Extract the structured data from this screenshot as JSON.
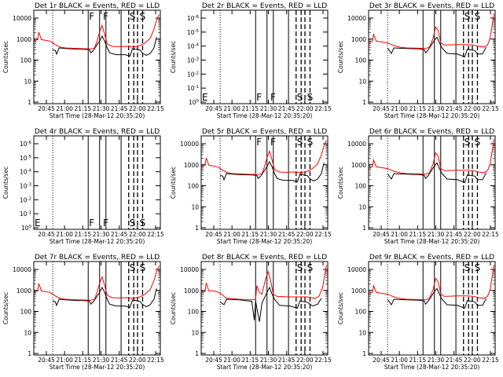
{
  "chart_data": [
    {
      "type": "line",
      "title": "Det 1r BLACK = Events, RED = LLD",
      "xlabel": "Start Time (28-Mar-12 20:35:20)",
      "ylabel": "Counts/sec",
      "scale": "log",
      "yticks": [
        "10000",
        "1000",
        "100",
        "10",
        "1"
      ],
      "ylim": [
        1,
        12000
      ],
      "xlim": [
        0,
        100
      ],
      "xticks": [
        "20:45",
        "21:00",
        "21:15",
        "21:30",
        "21:45",
        "22:00",
        "22:15"
      ],
      "flags": [
        "F",
        "F",
        "S",
        "S"
      ],
      "profile": "A",
      "series": [
        {
          "name": "BLACK",
          "color": "#000000"
        },
        {
          "name": "RED",
          "color": "#ff0000"
        }
      ]
    },
    {
      "type": "line",
      "title": "Det 2r BLACK = Events, RED = LLD",
      "xlabel": "Start Time (28-Mar-12 20:35:20)",
      "ylabel": "Counts/sec",
      "scale": "exp",
      "yticks": [
        "10^-6",
        "10^-5",
        "10^-4",
        "10^-3",
        "10^-2",
        "10^-1",
        "10^0"
      ],
      "xlim": [
        0,
        100
      ],
      "xticks": [
        "20:45",
        "21:00",
        "21:15",
        "21:30",
        "21:45",
        "22:00",
        "22:15"
      ],
      "flags": [
        "E",
        "F",
        "F",
        "S",
        "S"
      ],
      "profile": "none",
      "series": []
    },
    {
      "type": "line",
      "title": "Det 3r BLACK = Events, RED = LLD",
      "xlabel": "Start Time (28-Mar-12 20:35:20)",
      "ylabel": "Counts/sec",
      "scale": "log",
      "yticks": [
        "10000",
        "1000",
        "100",
        "10",
        "1"
      ],
      "ylim": [
        1,
        12000
      ],
      "xlim": [
        0,
        100
      ],
      "xticks": [
        "20:45",
        "21:00",
        "21:15",
        "21:30",
        "21:45",
        "22:00",
        "22:15"
      ],
      "flags": [
        "S",
        "S"
      ],
      "profile": "B",
      "series": [
        {
          "name": "BLACK",
          "color": "#000000"
        },
        {
          "name": "RED",
          "color": "#ff0000"
        }
      ]
    },
    {
      "type": "line",
      "title": "Det 4r BLACK = Events, RED = LLD",
      "xlabel": "Start Time (28-Mar-12 20:35:20)",
      "ylabel": "Counts/sec",
      "scale": "exp",
      "yticks": [
        "10^-6",
        "10^-5",
        "10^-4",
        "10^-3",
        "10^-2",
        "10^-1",
        "10^0"
      ],
      "xlim": [
        0,
        100
      ],
      "xticks": [
        "20:45",
        "21:00",
        "21:15",
        "21:30",
        "21:45",
        "22:00",
        "22:15"
      ],
      "flags": [
        "E",
        "F",
        "F",
        "S",
        "S"
      ],
      "profile": "none",
      "series": []
    },
    {
      "type": "line",
      "title": "Det 5r BLACK = Events, RED = LLD",
      "xlabel": "Start Time (28-Mar-12 20:35:20)",
      "ylabel": "Counts/sec",
      "scale": "log",
      "yticks": [
        "10000",
        "1000",
        "100",
        "10",
        "1"
      ],
      "ylim": [
        1,
        12000
      ],
      "xlim": [
        0,
        100
      ],
      "xticks": [
        "20:45",
        "21:00",
        "21:15",
        "21:30",
        "21:45",
        "22:00",
        "22:15"
      ],
      "flags": [
        "F",
        "F",
        "S",
        "S"
      ],
      "profile": "A",
      "series": [
        {
          "name": "BLACK",
          "color": "#000000"
        },
        {
          "name": "RED",
          "color": "#ff0000"
        }
      ]
    },
    {
      "type": "line",
      "title": "Det 6r BLACK = Events, RED = LLD",
      "xlabel": "Start Time (28-Mar-12 20:35:20)",
      "ylabel": "Counts/sec",
      "scale": "log",
      "yticks": [
        "10000",
        "1000",
        "100",
        "10",
        "1"
      ],
      "ylim": [
        1,
        12000
      ],
      "xlim": [
        0,
        100
      ],
      "xticks": [
        "20:45",
        "21:00",
        "21:15",
        "21:30",
        "21:45",
        "22:00",
        "22:15"
      ],
      "flags": [
        "S",
        "S"
      ],
      "profile": "B",
      "series": [
        {
          "name": "BLACK",
          "color": "#000000"
        },
        {
          "name": "RED",
          "color": "#ff0000"
        }
      ]
    },
    {
      "type": "line",
      "title": "Det 7r BLACK = Events, RED = LLD",
      "xlabel": "Start Time (28-Mar-12 20:35:20)",
      "ylabel": "Counts/sec",
      "scale": "log",
      "yticks": [
        "10000",
        "1000",
        "100",
        "10",
        "1"
      ],
      "ylim": [
        1,
        12000
      ],
      "xlim": [
        0,
        100
      ],
      "xticks": [
        "20:45",
        "21:00",
        "21:15",
        "21:30",
        "21:45",
        "22:00",
        "22:15"
      ],
      "flags": [
        "S",
        "S"
      ],
      "profile": "A",
      "series": [
        {
          "name": "BLACK",
          "color": "#000000"
        },
        {
          "name": "RED",
          "color": "#ff0000"
        }
      ]
    },
    {
      "type": "line",
      "title": "Det 8r BLACK = Events, RED = LLD",
      "xlabel": "Start Time (28-Mar-12 20:35:20)",
      "ylabel": "Counts/sec",
      "scale": "log",
      "yticks": [
        "10000",
        "1000",
        "100",
        "10",
        "1"
      ],
      "ylim": [
        1,
        12000
      ],
      "xlim": [
        0,
        100
      ],
      "xticks": [
        "20:45",
        "21:00",
        "21:15",
        "21:30",
        "21:45",
        "22:00",
        "22:15"
      ],
      "flags": [
        "S",
        "S"
      ],
      "profile": "C",
      "series": [
        {
          "name": "BLACK",
          "color": "#000000"
        },
        {
          "name": "RED",
          "color": "#ff0000"
        }
      ]
    },
    {
      "type": "line",
      "title": "Det 9r BLACK = Events, RED = LLD",
      "xlabel": "Start Time (28-Mar-12 20:35:20)",
      "ylabel": "Counts/sec",
      "scale": "log",
      "yticks": [
        "10000",
        "1000",
        "100",
        "10",
        "1"
      ],
      "ylim": [
        1,
        12000
      ],
      "xlim": [
        0,
        100
      ],
      "xticks": [
        "20:45",
        "21:00",
        "21:15",
        "21:30",
        "21:45",
        "22:00",
        "22:15"
      ],
      "flags": [
        "S",
        "S"
      ],
      "profile": "B",
      "series": [
        {
          "name": "BLACK",
          "color": "#000000"
        },
        {
          "name": "RED",
          "color": "#ff0000"
        }
      ]
    }
  ],
  "profiles": {
    "A": {
      "red": [
        [
          0,
          600
        ],
        [
          3,
          700
        ],
        [
          4,
          1500
        ],
        [
          6,
          700
        ],
        [
          9,
          650
        ],
        [
          13,
          600
        ],
        [
          17,
          420
        ],
        [
          21,
          320
        ],
        [
          25,
          300
        ],
        [
          30,
          290
        ],
        [
          35,
          280
        ],
        [
          45,
          270
        ],
        [
          48,
          300
        ],
        [
          50,
          600
        ],
        [
          52,
          1500
        ],
        [
          54,
          3000
        ],
        [
          56,
          1200
        ],
        [
          58,
          450
        ],
        [
          62,
          350
        ],
        [
          67,
          340
        ],
        [
          73,
          350
        ],
        [
          79,
          330
        ],
        [
          84,
          380
        ],
        [
          88,
          500
        ],
        [
          92,
          800
        ],
        [
          95,
          2000
        ],
        [
          97,
          5000
        ],
        [
          99,
          9000
        ]
      ],
      "black": [
        [
          15,
          250
        ],
        [
          17,
          230
        ],
        [
          18,
          160
        ],
        [
          20,
          300
        ],
        [
          25,
          280
        ],
        [
          30,
          270
        ],
        [
          40,
          260
        ],
        [
          44,
          250
        ],
        [
          45,
          180
        ],
        [
          47,
          230
        ],
        [
          52,
          600
        ],
        [
          54,
          1000
        ],
        [
          56,
          600
        ],
        [
          58,
          300
        ],
        [
          60,
          180
        ],
        [
          65,
          150
        ],
        [
          72,
          150
        ],
        [
          76,
          130
        ],
        [
          78,
          280
        ],
        [
          84,
          240
        ],
        [
          86,
          170
        ],
        [
          89,
          140
        ],
        [
          92,
          170
        ],
        [
          95,
          300
        ],
        [
          97,
          900
        ]
      ]
    },
    "B": {
      "red": [
        [
          0,
          500
        ],
        [
          3,
          600
        ],
        [
          4,
          1200
        ],
        [
          6,
          600
        ],
        [
          10,
          550
        ],
        [
          15,
          500
        ],
        [
          20,
          380
        ],
        [
          25,
          320
        ],
        [
          30,
          300
        ],
        [
          40,
          290
        ],
        [
          45,
          280
        ],
        [
          48,
          320
        ],
        [
          51,
          800
        ],
        [
          53,
          2500
        ],
        [
          55,
          1800
        ],
        [
          57,
          500
        ],
        [
          60,
          400
        ],
        [
          70,
          420
        ],
        [
          78,
          420
        ],
        [
          83,
          400
        ],
        [
          87,
          350
        ],
        [
          91,
          330
        ],
        [
          94,
          400
        ],
        [
          96,
          800
        ],
        [
          98,
          4000
        ],
        [
          99,
          10000
        ]
      ],
      "black": [
        [
          15,
          300
        ],
        [
          18,
          170
        ],
        [
          20,
          300
        ],
        [
          30,
          280
        ],
        [
          40,
          270
        ],
        [
          44,
          250
        ],
        [
          45,
          180
        ],
        [
          47,
          240
        ],
        [
          52,
          650
        ],
        [
          54,
          900
        ],
        [
          56,
          500
        ],
        [
          58,
          300
        ],
        [
          62,
          170
        ],
        [
          70,
          160
        ],
        [
          76,
          120
        ],
        [
          78,
          260
        ],
        [
          84,
          230
        ],
        [
          86,
          160
        ],
        [
          90,
          160
        ],
        [
          93,
          330
        ]
      ]
    },
    "C": {
      "red": [
        [
          0,
          600
        ],
        [
          3,
          650
        ],
        [
          4,
          1600
        ],
        [
          6,
          700
        ],
        [
          10,
          700
        ],
        [
          14,
          600
        ],
        [
          17,
          450
        ],
        [
          20,
          330
        ],
        [
          30,
          300
        ],
        [
          40,
          280
        ],
        [
          43,
          300
        ],
        [
          44,
          1200
        ],
        [
          46,
          600
        ],
        [
          48,
          500
        ],
        [
          51,
          2500
        ],
        [
          53,
          5000
        ],
        [
          55,
          1800
        ],
        [
          57,
          500
        ],
        [
          60,
          400
        ],
        [
          70,
          380
        ],
        [
          78,
          380
        ],
        [
          84,
          380
        ],
        [
          90,
          330
        ],
        [
          93,
          400
        ],
        [
          96,
          1000
        ],
        [
          98,
          5000
        ],
        [
          99,
          10000
        ]
      ],
      "black": [
        [
          15,
          230
        ],
        [
          18,
          170
        ],
        [
          20,
          300
        ],
        [
          30,
          280
        ],
        [
          38,
          250
        ],
        [
          40,
          240
        ],
        [
          42,
          35
        ],
        [
          43,
          250
        ],
        [
          46,
          30
        ],
        [
          48,
          200
        ],
        [
          52,
          600
        ],
        [
          54,
          1000
        ],
        [
          56,
          500
        ],
        [
          58,
          300
        ],
        [
          62,
          160
        ],
        [
          70,
          150
        ],
        [
          76,
          120
        ],
        [
          78,
          250
        ],
        [
          84,
          220
        ],
        [
          88,
          150
        ],
        [
          92,
          180
        ],
        [
          95,
          330
        ]
      ]
    }
  }
}
